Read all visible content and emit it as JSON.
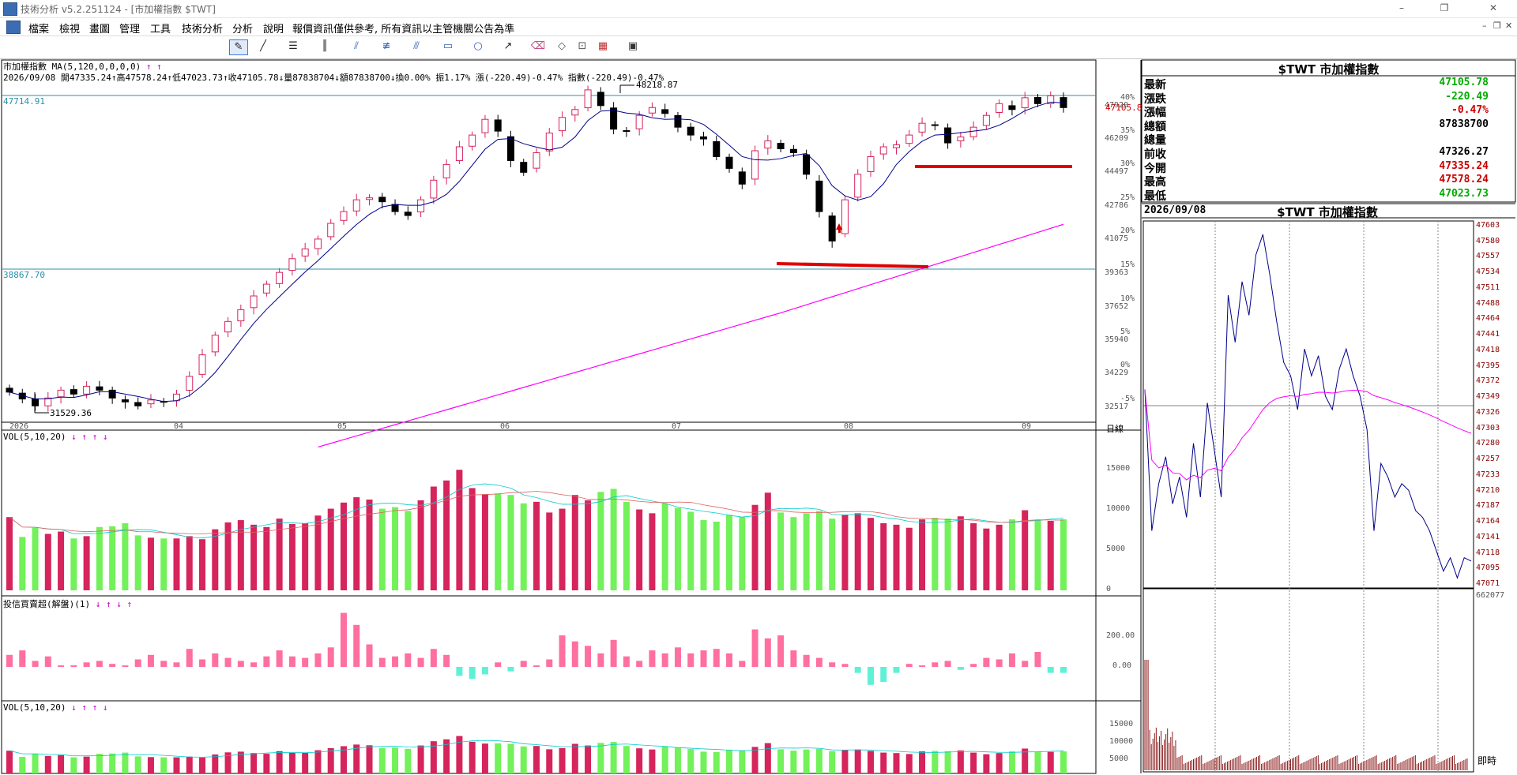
{
  "window": {
    "title": "技術分析 v5.2.251124 - [市加權指數 $TWT]",
    "controls": [
      "–",
      "❐",
      "✕"
    ],
    "mdi_controls": [
      "–",
      "❐",
      "✕"
    ]
  },
  "menu": [
    "檔案",
    "檢視",
    "畫圖",
    "管理",
    "工具",
    "技術分析",
    "分析",
    "說明",
    "報價資訊僅供參考, 所有資訊以主管機關公告為準"
  ],
  "toolbar": {
    "tools": [
      "pointer-icon",
      "line-icon",
      "trendline-icon",
      "parallel-lines-icon",
      "fan-icon",
      "fib-retrace-icon",
      "channel-icon",
      "rectangle-icon",
      "ellipse-icon",
      "arrow-icon",
      "eraser-icon",
      "eraser-all-icon",
      "zoom-icon",
      "palette-icon",
      "save-icon"
    ]
  },
  "colors": {
    "up": "#d6245c",
    "down": "#000000",
    "vol_up": "#d6245c",
    "vol_down": "#72f15a",
    "ma5": "#00008b",
    "ma120": "#ff00ff",
    "grid": "#00008b",
    "support": "#e00000",
    "quote_green": "#00aa00",
    "quote_red": "#cc0000"
  },
  "main_chart": {
    "header": "市加權指數 MA(5,120,0,0,0,0)",
    "header_arrows": "↑ ↑",
    "info_line": "2026/09/08 開47335.24↑高47578.24↑低47023.73↑收47105.78↓量87838704↓額87838700↓換0.00% 振1.17% 漲(-220.49)-0.47% 指數(-220.49)-0.47%",
    "ref_high_label": "47714.91",
    "ref_low_label": "38867.70",
    "high_annot": "48218.87",
    "low_annot": "31529.36",
    "last_price": "47105.8",
    "price_axis": [
      "47920",
      "46209",
      "44497",
      "42786",
      "41075",
      "39363",
      "37652",
      "35940",
      "34229",
      "32517"
    ],
    "pct_axis": [
      "40%",
      "35%",
      "30%",
      "25%",
      "20%",
      "15%",
      "10%",
      "5%",
      "0%",
      "-5%"
    ],
    "months": [
      "2026",
      "04",
      "05",
      "06",
      "07",
      "08",
      "09"
    ],
    "axis_mode": "日線"
  },
  "vol_chart": {
    "header": "VOL(5,10,20)",
    "arrows": "↓ ↑ ↑ ↓",
    "axis": [
      "15000",
      "10000",
      "5000",
      "0"
    ]
  },
  "inst_chart": {
    "header": "投信買賣超(解盤)(1)",
    "arrows": "↓ ↑ ↓ ↑",
    "axis": [
      "200.00",
      "0.00"
    ]
  },
  "vol2_chart": {
    "header": "VOL(5,10,20)",
    "arrows": "↓ ↑ ↑ ↓",
    "axis": [
      "15000",
      "10000",
      "5000"
    ]
  },
  "quote": {
    "title": "$TWT 市加權指數",
    "rows": [
      {
        "label": "最新",
        "value": "47105.78",
        "color": "green"
      },
      {
        "label": "漲跌",
        "value": "-220.49",
        "color": "green"
      },
      {
        "label": "漲幅",
        "value": "-0.47%",
        "color": "red"
      },
      {
        "label": "總額",
        "value": "87838700",
        "color": "black"
      },
      {
        "label": "總量",
        "value": "",
        "color": "black"
      },
      {
        "label": "前收",
        "value": "47326.27",
        "color": "black"
      },
      {
        "label": "今開",
        "value": "47335.24",
        "color": "red"
      },
      {
        "label": "最高",
        "value": "47578.24",
        "color": "red"
      },
      {
        "label": "最低",
        "value": "47023.73",
        "color": "green"
      }
    ]
  },
  "intraday": {
    "date": "2026/09/08",
    "title": "$TWT 市加權指數",
    "price_axis": [
      "47603",
      "47580",
      "47557",
      "47534",
      "47511",
      "47488",
      "47464",
      "47441",
      "47418",
      "47395",
      "47372",
      "47349",
      "47326",
      "47303",
      "47280",
      "47257",
      "47233",
      "47210",
      "47187",
      "47164",
      "47141",
      "47118",
      "47095",
      "47071"
    ],
    "vol_top": "662077",
    "mode": "即時"
  },
  "chart_data": {
    "type": "candlestick",
    "title": "市加權指數",
    "series_ma": [
      "MA5",
      "MA120"
    ],
    "high": 48218.87,
    "low": 31529.36,
    "last_close": 47105.78,
    "ref_lines": [
      47714.91,
      38867.7
    ],
    "daily_close": [
      32600,
      32250,
      31900,
      32300,
      32700,
      32500,
      32900,
      32700,
      32300,
      32100,
      31900,
      32200,
      32100,
      32500,
      33400,
      34500,
      35500,
      36200,
      36800,
      37500,
      38100,
      38700,
      39400,
      39900,
      40400,
      41200,
      41800,
      42400,
      42500,
      42300,
      41800,
      41600,
      42400,
      43400,
      44200,
      45100,
      45700,
      46500,
      45900,
      44400,
      43800,
      44800,
      45800,
      46600,
      47000,
      48000,
      47200,
      46000,
      45900,
      46700,
      47100,
      46800,
      46100,
      45700,
      45500,
      44600,
      44000,
      43200,
      44900,
      45400,
      45000,
      44800,
      43700,
      41800,
      40300,
      42400,
      43700,
      44600,
      45100,
      45200,
      45700,
      46300,
      46200,
      45300,
      45600,
      46100,
      46700,
      47300,
      47000,
      47600,
      47300,
      47700,
      47100
    ],
    "daily_volume": [
      9600,
      7000,
      8200,
      7400,
      7700,
      6800,
      7100,
      8300,
      8400,
      8800,
      7200,
      6900,
      6800,
      6800,
      7100,
      6700,
      8000,
      8900,
      9200,
      8600,
      8300,
      9400,
      8700,
      8800,
      9800,
      10700,
      11500,
      12200,
      11900,
      10700,
      10900,
      10400,
      11800,
      13600,
      14400,
      15800,
      13400,
      12600,
      12700,
      12500,
      11400,
      11600,
      10200,
      10700,
      12500,
      11800,
      12900,
      13300,
      11600,
      10600,
      10100,
      11400,
      10800,
      10300,
      9200,
      9000,
      9900,
      9600,
      11200,
      12800,
      10200,
      9600,
      10100,
      10400,
      9400,
      9900,
      10100,
      9500,
      8800,
      8600,
      8200,
      9300,
      9500,
      9400,
      9700,
      8800,
      8100,
      8600,
      9300,
      10500,
      9200,
      9100,
      9300
    ],
    "inst_net": [
      80,
      110,
      40,
      70,
      10,
      10,
      30,
      40,
      20,
      10,
      50,
      80,
      40,
      30,
      120,
      50,
      90,
      60,
      40,
      30,
      70,
      110,
      70,
      60,
      90,
      130,
      360,
      280,
      150,
      60,
      70,
      90,
      60,
      120,
      80,
      -60,
      -80,
      -50,
      30,
      -30,
      40,
      10,
      50,
      210,
      170,
      140,
      90,
      180,
      70,
      40,
      110,
      90,
      130,
      90,
      110,
      120,
      90,
      40,
      250,
      190,
      210,
      110,
      80,
      60,
      30,
      20,
      -40,
      -120,
      -100,
      -40,
      20,
      10,
      30,
      40,
      -20,
      20,
      60,
      50,
      90,
      40,
      100,
      -40,
      -40
    ]
  }
}
